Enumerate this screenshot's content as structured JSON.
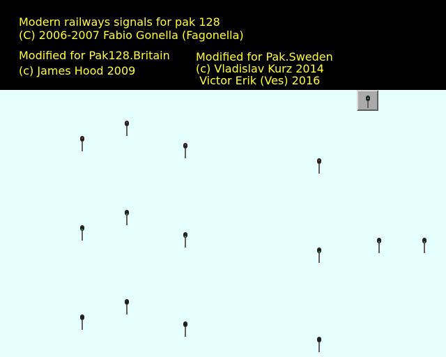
{
  "credits": {
    "line1": "Modern railways signals for pak 128",
    "line2": "(C) 2006-2007 Fabio Gonella (Fagonella)",
    "britain_line1": "Modified for Pak128.Britain",
    "britain_line2": "(c) James Hood 2009",
    "sweden_line1": "Modified for Pak.Sweden",
    "sweden_line2": "(c) Vladislav Kurz 2014",
    "sweden_line3": " Victor Erik (Ves) 2016"
  },
  "colors": {
    "header_bg": "#000000",
    "credit_text": "#ffff33",
    "canvas_bg": "#e6ffff",
    "signal_red": "#c0392b",
    "signal_green": "#27ae60"
  },
  "icon_button": {
    "icon": "signal-icon"
  },
  "signals": [
    {
      "name": "signal-row1-a",
      "state": "red"
    },
    {
      "name": "signal-row1-b",
      "state": "red"
    },
    {
      "name": "signal-row1-c",
      "state": "red"
    },
    {
      "name": "signal-row1-d",
      "state": "red"
    },
    {
      "name": "signal-row2-a",
      "state": "green"
    },
    {
      "name": "signal-row2-b",
      "state": "green"
    },
    {
      "name": "signal-row2-c",
      "state": "green"
    },
    {
      "name": "signal-row2-d",
      "state": "green"
    },
    {
      "name": "signal-row2-e",
      "state": "green"
    },
    {
      "name": "signal-row2-f",
      "state": "green"
    },
    {
      "name": "signal-row3-a",
      "state": "off"
    },
    {
      "name": "signal-row3-b",
      "state": "off"
    },
    {
      "name": "signal-row3-c",
      "state": "off"
    },
    {
      "name": "signal-row3-d",
      "state": "off"
    }
  ]
}
